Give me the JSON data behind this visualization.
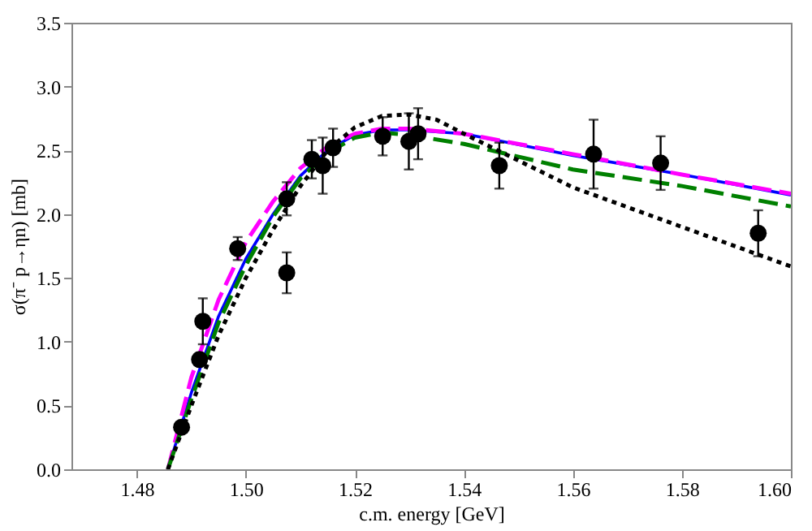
{
  "chart_data": {
    "type": "line",
    "xlabel": "c.m. energy [GeV]",
    "ylabel": "σ(π⁻ p→ηn) [mb]",
    "xlim": [
      1.468,
      1.6
    ],
    "ylim": [
      0,
      3.5
    ],
    "xticks": [
      1.48,
      {
        "value": 1.5,
        "label": "1.50"
      },
      1.52,
      1.54,
      1.56,
      1.58,
      {
        "value": 1.6,
        "label": "1.60"
      }
    ],
    "yticks": [
      {
        "value": 0,
        "label": "0.0"
      },
      0.5,
      {
        "value": 1,
        "label": "1.0"
      },
      1.5,
      {
        "value": 2,
        "label": "2.0"
      },
      2.5,
      {
        "value": 3,
        "label": "3.0"
      },
      3.5
    ],
    "grid": false,
    "series": [
      {
        "color": "#0000ff",
        "line_style": "solid",
        "x": [
          1.4857,
          1.49,
          1.495,
          1.5,
          1.505,
          1.51,
          1.515,
          1.52,
          1.525,
          1.53,
          1.54,
          1.56,
          1.58,
          1.6
        ],
        "values": [
          0,
          0.6,
          1.2,
          1.65,
          2.0,
          2.3,
          2.5,
          2.62,
          2.66,
          2.66,
          2.63,
          2.46,
          2.31,
          2.15
        ]
      },
      {
        "color": "#ff00ff",
        "line_style": "dashed",
        "x": [
          1.4857,
          1.49,
          1.495,
          1.5,
          1.505,
          1.51,
          1.515,
          1.52,
          1.525,
          1.53,
          1.54,
          1.56,
          1.58,
          1.6
        ],
        "values": [
          0,
          0.72,
          1.33,
          1.78,
          2.1,
          2.36,
          2.53,
          2.63,
          2.67,
          2.67,
          2.63,
          2.47,
          2.31,
          2.16
        ]
      },
      {
        "color": "#008000",
        "line_style": "dashed",
        "x": [
          1.4857,
          1.49,
          1.495,
          1.5,
          1.505,
          1.51,
          1.515,
          1.52,
          1.525,
          1.53,
          1.54,
          1.56,
          1.58,
          1.6
        ],
        "values": [
          0,
          0.55,
          1.15,
          1.6,
          1.98,
          2.28,
          2.48,
          2.6,
          2.64,
          2.62,
          2.55,
          2.35,
          2.22,
          2.06
        ]
      },
      {
        "color": "#000000",
        "line_style": "dotted",
        "x": [
          1.4857,
          1.49,
          1.495,
          1.5,
          1.505,
          1.51,
          1.515,
          1.52,
          1.525,
          1.53,
          1.535,
          1.54,
          1.55,
          1.56,
          1.58,
          1.6
        ],
        "values": [
          0,
          0.5,
          1.05,
          1.5,
          1.88,
          2.22,
          2.5,
          2.68,
          2.77,
          2.78,
          2.74,
          2.63,
          2.42,
          2.21,
          1.9,
          1.59
        ]
      },
      {
        "type": "scatter",
        "color": "#000000",
        "marker": "circle",
        "x": [
          1.4882,
          1.4915,
          1.4921,
          1.4985,
          1.5075,
          1.5075,
          1.5121,
          1.5141,
          1.516,
          1.5251,
          1.5299,
          1.5316,
          1.5465,
          1.5638,
          1.5761,
          1.594
        ],
        "values": [
          0.33,
          0.86,
          1.16,
          1.73,
          1.54,
          2.12,
          2.43,
          2.38,
          2.52,
          2.61,
          2.57,
          2.63,
          2.38,
          2.47,
          2.4,
          1.85
        ],
        "errors": [
          0.04,
          0.05,
          0.18,
          0.09,
          0.16,
          0.13,
          0.15,
          0.22,
          0.15,
          0.15,
          0.22,
          0.2,
          0.18,
          0.27,
          0.21,
          0.18
        ]
      }
    ]
  }
}
